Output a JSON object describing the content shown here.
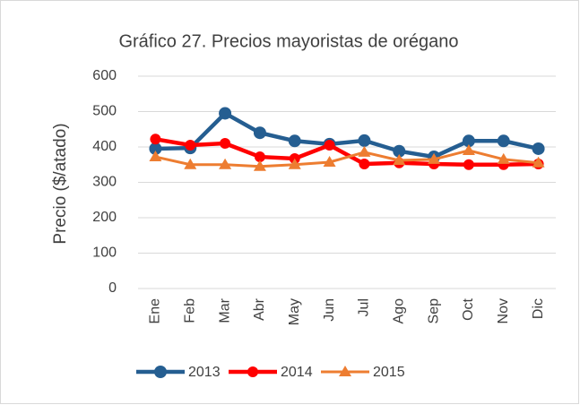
{
  "chart_data": {
    "type": "line",
    "title": "Gráfico 27. Precios mayoristas de orégano",
    "y_label": "Precio ($/atado)",
    "categories": [
      "Ene",
      "Feb",
      "Mar",
      "Abr",
      "May",
      "Jun",
      "Jul",
      "Ago",
      "Sep",
      "Oct",
      "Nov",
      "Dic"
    ],
    "series": [
      {
        "name": "2013",
        "color": "#255e91",
        "marker": "circle",
        "values": [
          395,
          397,
          495,
          440,
          417,
          408,
          418,
          388,
          372,
          417,
          417,
          395
        ]
      },
      {
        "name": "2014",
        "color": "#ff0000",
        "marker": "circle",
        "values": [
          422,
          405,
          410,
          372,
          367,
          405,
          352,
          355,
          352,
          350,
          350,
          352
        ]
      },
      {
        "name": "2015",
        "color": "#ed7d31",
        "marker": "triangle",
        "values": [
          372,
          350,
          350,
          345,
          350,
          357,
          385,
          362,
          365,
          390,
          365,
          355
        ]
      }
    ],
    "ylim": [
      0,
      600
    ],
    "yticks": [
      0,
      100,
      200,
      300,
      400,
      500,
      600
    ],
    "grid": true,
    "legend": "bottom"
  }
}
